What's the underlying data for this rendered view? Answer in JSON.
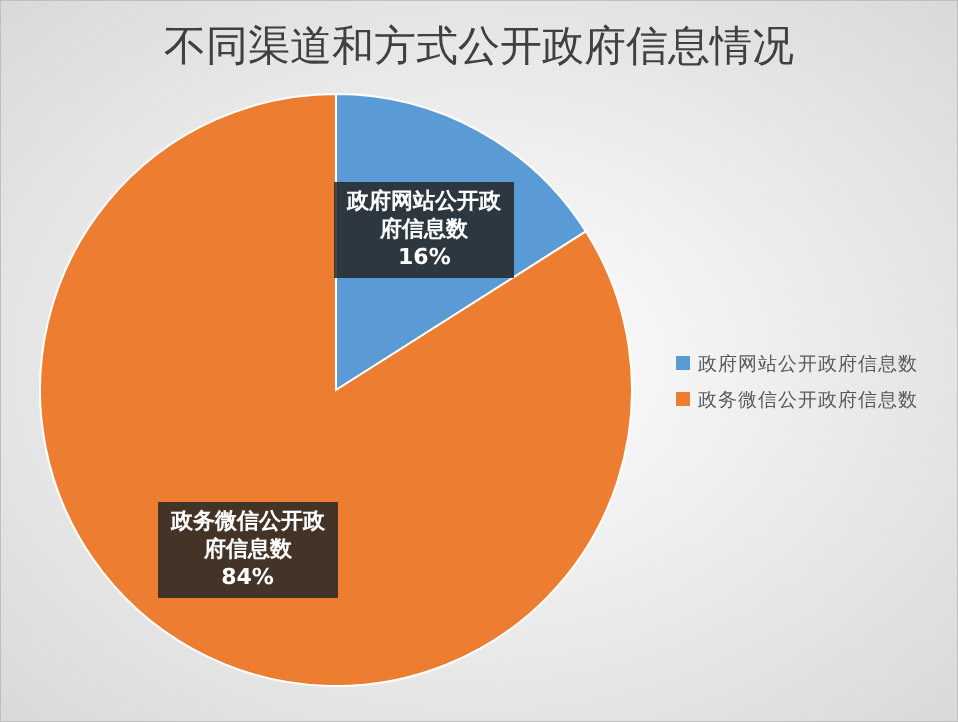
{
  "chart_data": {
    "type": "pie",
    "title": "不同渠道和方式公开政府信息情况",
    "categories": [
      "政府网站公开政府信息数",
      "政务微信公开政府信息数"
    ],
    "values": [
      16,
      84
    ],
    "colors": [
      "#5b9bd5",
      "#ed7d31"
    ],
    "value_labels": [
      "16%",
      "84%"
    ],
    "legend": "right"
  }
}
